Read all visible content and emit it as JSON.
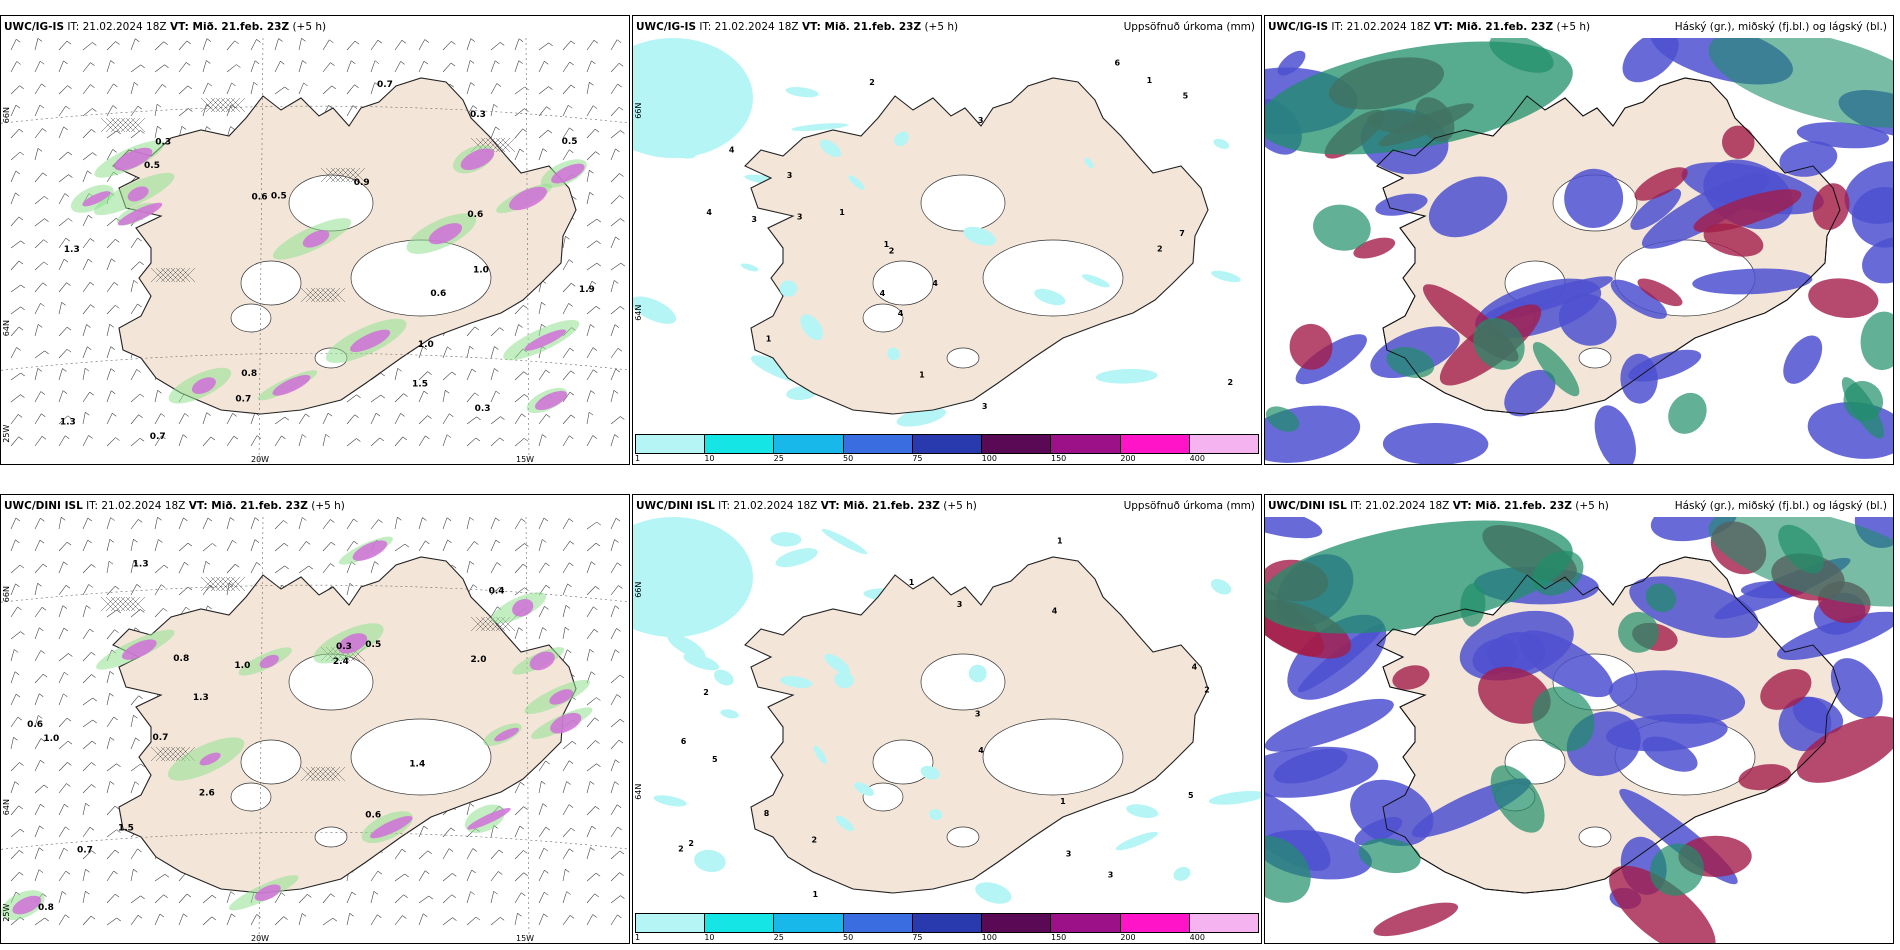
{
  "panels": [
    {
      "model": "UWC/IG-IS",
      "it_label": "IT: 21.02.2024 18Z",
      "vt_label": "VT: Mið. 21.feb. 23Z",
      "offset": "(+5 h)",
      "product": "",
      "lon_ticks": [
        "20W",
        "15W"
      ],
      "lat_ticks": [
        "66N",
        "64N",
        "25W"
      ],
      "values": [
        "0.6",
        "1.0",
        "1.3",
        "0.3",
        "0.5",
        "0.7",
        "1.5",
        "0.6",
        "0.3",
        "1.0",
        "0.9",
        "0.7",
        "0.5",
        "1.3",
        "0.7",
        "1.9",
        "0.3",
        "0.5",
        "0.6",
        "0.8"
      ]
    },
    {
      "model": "UWC/IG-IS",
      "it_label": "IT: 21.02.2024 18Z",
      "vt_label": "VT: Mið. 21.feb. 23Z",
      "offset": "(+5 h)",
      "product": "Uppsöfnuð úrkoma (mm)",
      "lat_ticks": [
        "66N",
        "64N"
      ],
      "values": [
        "3",
        "3",
        "4",
        "4",
        "1",
        "2",
        "3",
        "6",
        "4",
        "2",
        "1",
        "5",
        "4",
        "2",
        "3",
        "1",
        "7",
        "1",
        "2",
        "4",
        "1",
        "3"
      ],
      "colorbar": [
        "1",
        "10",
        "25",
        "50",
        "75",
        "100",
        "150",
        "200",
        "400"
      ]
    },
    {
      "model": "UWC/IG-IS",
      "it_label": "IT: 21.02.2024 18Z",
      "vt_label": "VT: Mið. 21.feb. 23Z",
      "offset": "(+5 h)",
      "product": "Háský (gr.), miðský (fj.bl.) og lágský (bl.)"
    },
    {
      "model": "UWC/DINI ISL",
      "it_label": "IT: 21.02.2024 18Z",
      "vt_label": "VT: Mið. 21.feb. 23Z",
      "offset": "(+5 h)",
      "product": "",
      "lon_ticks": [
        "20W",
        "15W"
      ],
      "lat_ticks": [
        "66N",
        "64N",
        "25W"
      ],
      "values": [
        "0.4",
        "1.0",
        "1.4",
        "2.4",
        "0.7",
        "0.3",
        "0.6",
        "0.5",
        "1.3",
        "2.6",
        "1.3",
        "0.8",
        "0.6",
        "0.7",
        "2.0",
        "1.0",
        "0.8",
        "1.5"
      ]
    },
    {
      "model": "UWC/DINI ISL",
      "it_label": "IT: 21.02.2024 18Z",
      "vt_label": "VT: Mið. 21.feb. 23Z",
      "offset": "(+5 h)",
      "product": "Uppsöfnuð úrkoma (mm)",
      "lat_ticks": [
        "66N",
        "64N"
      ],
      "values": [
        "3",
        "4",
        "1",
        "2",
        "3",
        "6",
        "5",
        "8",
        "2",
        "1",
        "4",
        "3",
        "2",
        "5",
        "1",
        "3",
        "2",
        "4",
        "1",
        "2"
      ],
      "colorbar": [
        "1",
        "10",
        "25",
        "50",
        "75",
        "100",
        "150",
        "200",
        "400"
      ]
    },
    {
      "model": "UWC/DINI ISL",
      "it_label": "IT: 21.02.2024 18Z",
      "vt_label": "VT: Mið. 21.feb. 23Z",
      "offset": "(+5 h)",
      "product": "Háský (gr.), miðský (fj.bl.) og lágský (bl.)"
    }
  ],
  "colors": {
    "land": "#f3e6d8",
    "ice": "#ffffff",
    "precip_light": "#b6f5f5",
    "snow": "#d070d8",
    "rain_green": "#8fe08f",
    "cloud_high": "#1f8f6a",
    "cloud_mid": "#a31d4a",
    "cloud_low": "#4d50d0",
    "colorbar": [
      "#b6f5f5",
      "#15e5e5",
      "#19b8ea",
      "#3a6ee0",
      "#283aad",
      "#5a0a55",
      "#9c1188",
      "#ff14c8",
      "#f5b3f0"
    ]
  }
}
